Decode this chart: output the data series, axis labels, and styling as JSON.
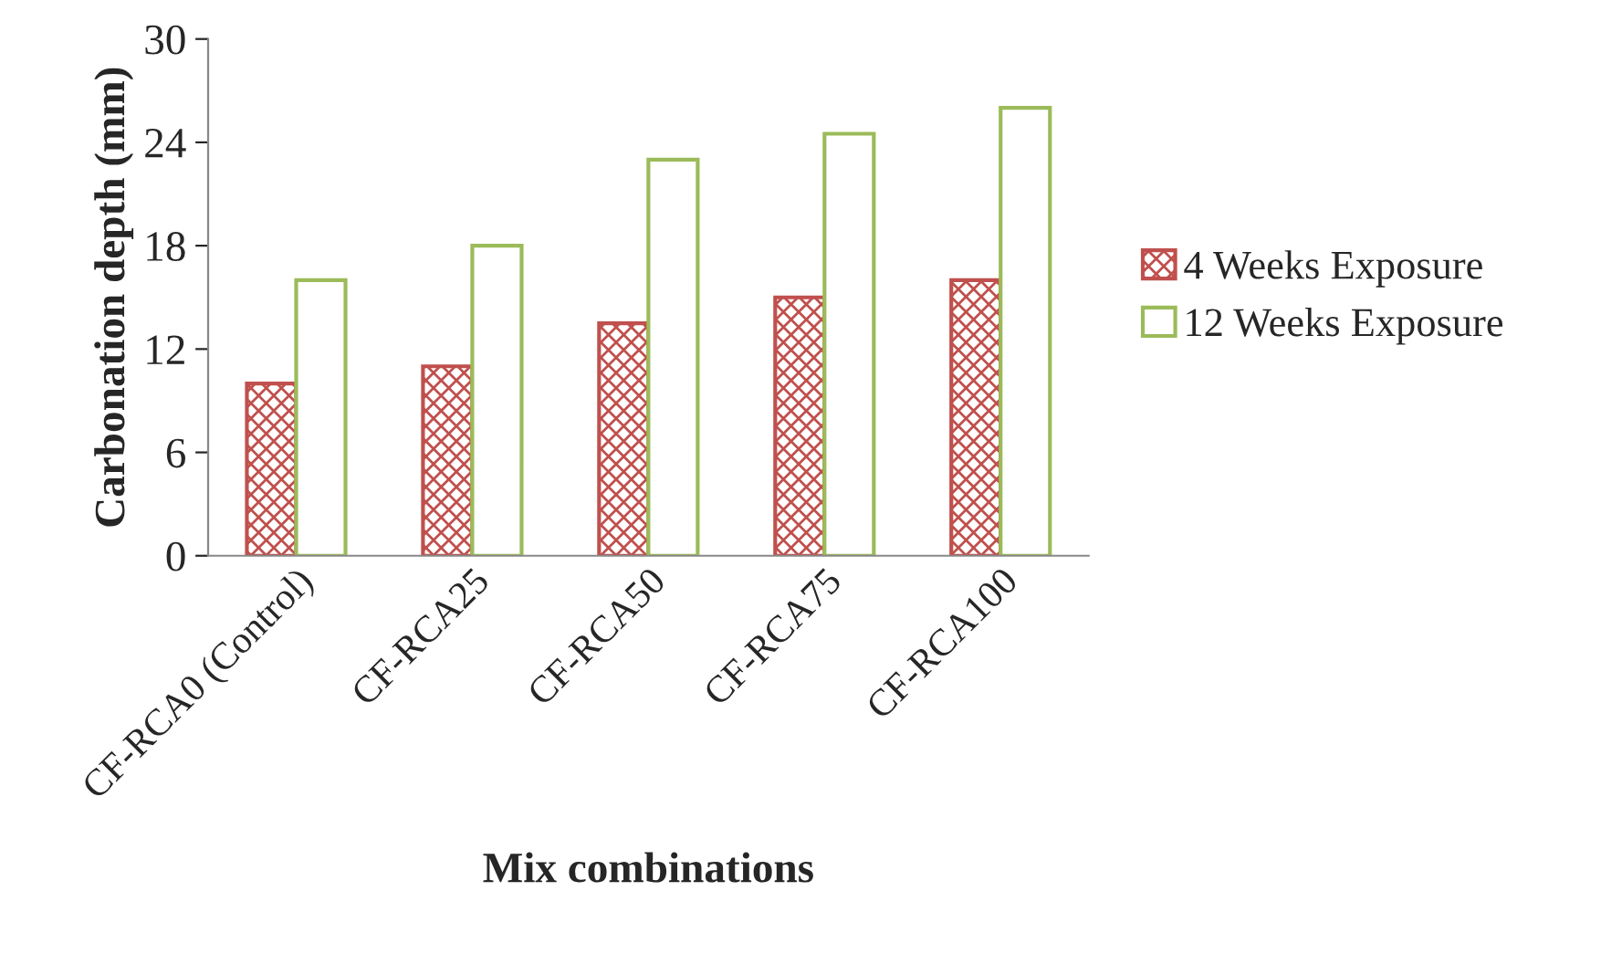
{
  "chart_data": {
    "type": "bar",
    "xlabel": "Mix combinations",
    "ylabel": "Carbonation depth (mm)",
    "categories": [
      "CF-RCA0 (Control)",
      "CF-RCA25",
      "CF-RCA50",
      "CF-RCA75",
      "CF-RCA100"
    ],
    "series": [
      {
        "name": "4 Weeks Exposure",
        "color": "#c0504d",
        "values": [
          10,
          11,
          13.5,
          15,
          16
        ]
      },
      {
        "name": "12 Weeks Exposure",
        "color": "#9bbb59",
        "values": [
          16,
          18,
          23,
          24.5,
          26
        ]
      }
    ],
    "ylim": [
      0,
      30
    ],
    "yticks": [
      0,
      6,
      12,
      18,
      24,
      30
    ],
    "grid": false,
    "legend": "right"
  }
}
